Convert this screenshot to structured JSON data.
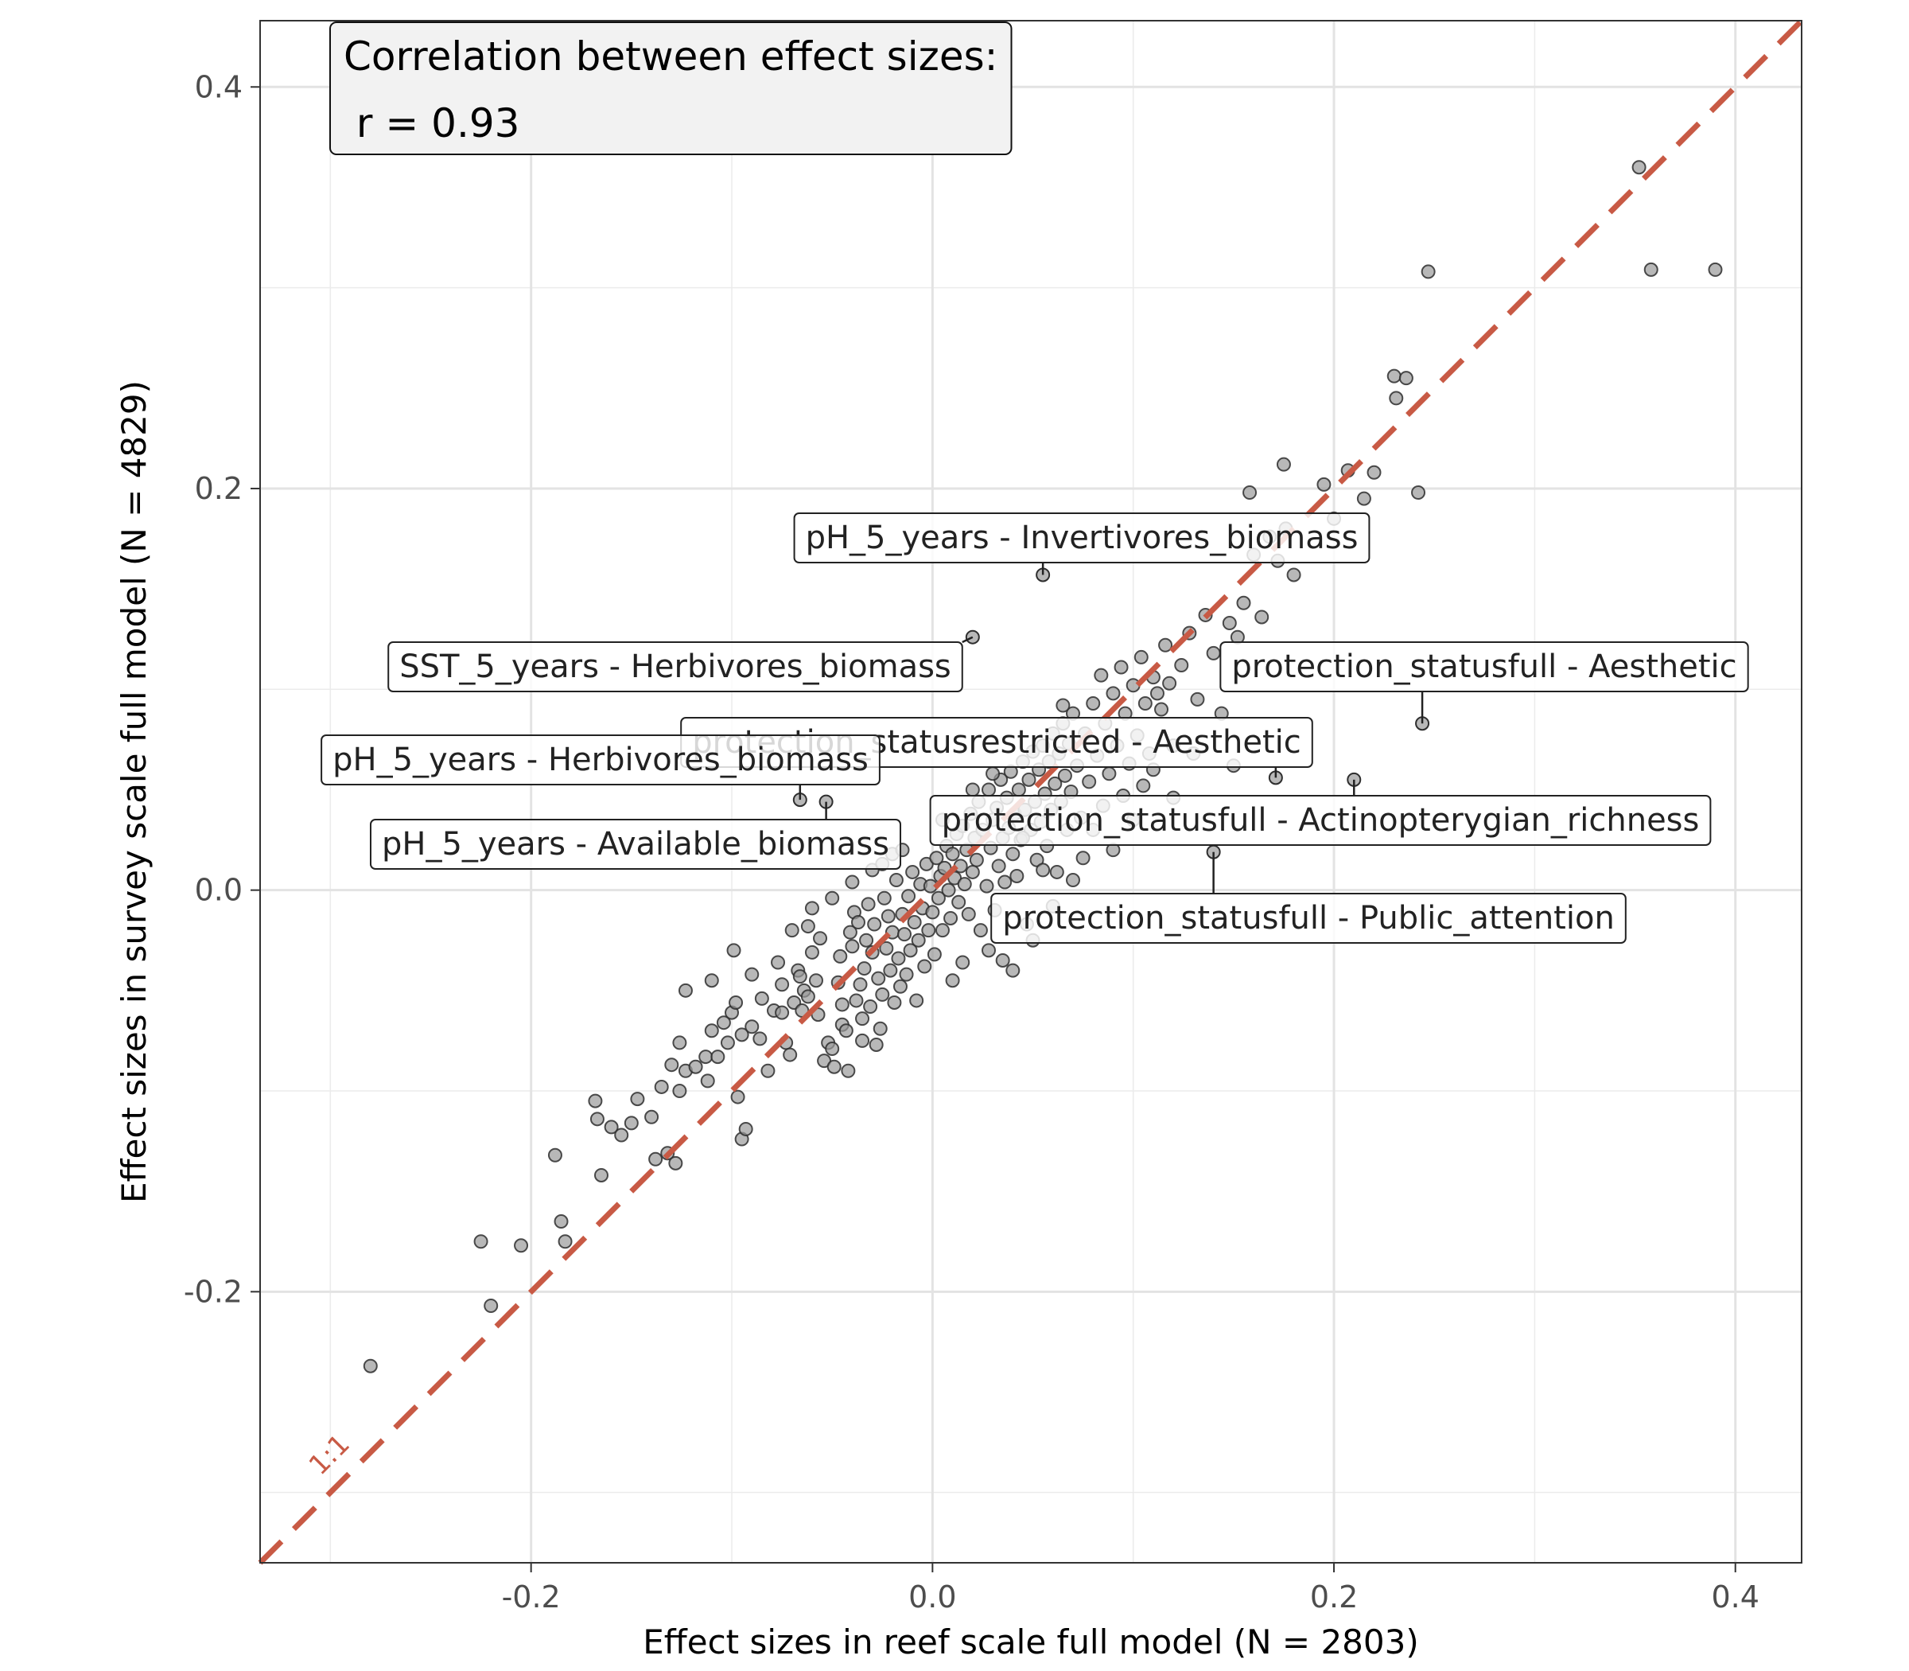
{
  "chart_data": {
    "type": "scatter",
    "title": "",
    "xlabel": "Effect sizes in reef scale full model (N = 2803)",
    "ylabel": "Effect sizes in survey scale full model (N = 4829)",
    "xlim": [
      -0.335,
      0.433
    ],
    "ylim": [
      -0.335,
      0.433
    ],
    "x_ticks": [
      -0.2,
      0.0,
      0.2,
      0.4
    ],
    "y_ticks": [
      -0.2,
      0.0,
      0.2,
      0.4
    ],
    "x_tick_labels": [
      "-0.2",
      "0.0",
      "0.2",
      "0.4"
    ],
    "y_tick_labels": [
      "-0.2",
      "0.0",
      "0.2",
      "0.4"
    ],
    "grid": true,
    "reference_line": {
      "label": "1:1",
      "slope": 1,
      "intercept": 0,
      "color": "#c85a45",
      "style": "dashed"
    },
    "correlation_box": {
      "line1": "Correlation between effect sizes:",
      "line2": " r = 0.93"
    },
    "point_style": {
      "fill": "#9a9a9a",
      "stroke": "#2e2e2e",
      "opacity": 0.7
    },
    "labeled_points": [
      {
        "label": "pH_5_years - Invertivores_biomass",
        "x": 0.055,
        "y": 0.157
      },
      {
        "label": "SST_5_years - Herbivores_biomass",
        "x": 0.02,
        "y": 0.126
      },
      {
        "label": "protection_statusfull - Aesthetic",
        "x": 0.244,
        "y": 0.083
      },
      {
        "label": "protection_statusrestricted - Aesthetic",
        "x": 0.171,
        "y": 0.056
      },
      {
        "label": "pH_5_years - Herbivores_biomass",
        "x": -0.066,
        "y": 0.045
      },
      {
        "label": "protection_statusfull - Actinopterygian_richness",
        "x": 0.21,
        "y": 0.055
      },
      {
        "label": "pH_5_years - Available_biomass",
        "x": -0.053,
        "y": 0.044
      },
      {
        "label": "protection_statusfull - Public_attention",
        "x": 0.14,
        "y": 0.019
      }
    ],
    "points": [
      [
        -0.28,
        -0.237
      ],
      [
        -0.225,
        -0.175
      ],
      [
        -0.22,
        -0.207
      ],
      [
        -0.205,
        -0.177
      ],
      [
        -0.188,
        -0.132
      ],
      [
        -0.185,
        -0.165
      ],
      [
        -0.183,
        -0.175
      ],
      [
        -0.165,
        -0.142
      ],
      [
        -0.168,
        -0.105
      ],
      [
        -0.167,
        -0.114
      ],
      [
        -0.16,
        -0.118
      ],
      [
        -0.155,
        -0.122
      ],
      [
        -0.15,
        -0.116
      ],
      [
        -0.147,
        -0.104
      ],
      [
        -0.14,
        -0.113
      ],
      [
        -0.135,
        -0.098
      ],
      [
        -0.13,
        -0.087
      ],
      [
        -0.126,
        -0.076
      ],
      [
        -0.123,
        -0.05
      ],
      [
        -0.138,
        -0.134
      ],
      [
        -0.132,
        -0.131
      ],
      [
        -0.128,
        -0.136
      ],
      [
        -0.126,
        -0.1
      ],
      [
        -0.123,
        -0.09
      ],
      [
        -0.118,
        -0.088
      ],
      [
        -0.113,
        -0.083
      ],
      [
        -0.11,
        -0.07
      ],
      [
        -0.104,
        -0.066
      ],
      [
        -0.1,
        -0.061
      ],
      [
        -0.098,
        -0.056
      ],
      [
        -0.097,
        -0.103
      ],
      [
        -0.095,
        -0.124
      ],
      [
        -0.093,
        -0.119
      ],
      [
        -0.112,
        -0.095
      ],
      [
        -0.107,
        -0.083
      ],
      [
        -0.102,
        -0.076
      ],
      [
        -0.099,
        -0.03
      ],
      [
        -0.095,
        -0.072
      ],
      [
        -0.09,
        -0.068
      ],
      [
        -0.086,
        -0.074
      ],
      [
        -0.082,
        -0.09
      ],
      [
        -0.079,
        -0.06
      ],
      [
        -0.077,
        -0.036
      ],
      [
        -0.075,
        -0.061
      ],
      [
        -0.073,
        -0.076
      ],
      [
        -0.071,
        -0.082
      ],
      [
        -0.069,
        -0.056
      ],
      [
        -0.067,
        -0.04
      ],
      [
        -0.066,
        -0.043
      ],
      [
        -0.064,
        -0.05
      ],
      [
        -0.062,
        -0.053
      ],
      [
        -0.062,
        -0.018
      ],
      [
        -0.06,
        -0.031
      ],
      [
        -0.058,
        -0.045
      ],
      [
        -0.057,
        -0.062
      ],
      [
        -0.056,
        -0.024
      ],
      [
        -0.054,
        -0.085
      ],
      [
        -0.052,
        -0.076
      ],
      [
        -0.05,
        -0.079
      ],
      [
        -0.049,
        -0.088
      ],
      [
        -0.047,
        -0.046
      ],
      [
        -0.046,
        -0.033
      ],
      [
        -0.045,
        -0.067
      ],
      [
        -0.043,
        -0.07
      ],
      [
        -0.042,
        -0.09
      ],
      [
        -0.041,
        -0.021
      ],
      [
        -0.04,
        -0.028
      ],
      [
        -0.039,
        -0.011
      ],
      [
        -0.038,
        -0.055
      ],
      [
        -0.037,
        -0.016
      ],
      [
        -0.036,
        -0.047
      ],
      [
        -0.035,
        -0.064
      ],
      [
        -0.034,
        -0.039
      ],
      [
        -0.033,
        -0.025
      ],
      [
        -0.032,
        -0.007
      ],
      [
        -0.031,
        -0.058
      ],
      [
        -0.03,
        -0.031
      ],
      [
        -0.029,
        -0.017
      ],
      [
        -0.028,
        -0.077
      ],
      [
        -0.027,
        -0.044
      ],
      [
        -0.026,
        -0.069
      ],
      [
        -0.025,
        -0.052
      ],
      [
        -0.024,
        -0.004
      ],
      [
        -0.023,
        -0.029
      ],
      [
        -0.022,
        -0.013
      ],
      [
        -0.021,
        -0.04
      ],
      [
        -0.02,
        -0.021
      ],
      [
        -0.019,
        -0.056
      ],
      [
        -0.018,
        0.005
      ],
      [
        -0.017,
        -0.034
      ],
      [
        -0.016,
        -0.048
      ],
      [
        -0.015,
        -0.012
      ],
      [
        -0.014,
        -0.022
      ],
      [
        -0.013,
        -0.042
      ],
      [
        -0.012,
        -0.003
      ],
      [
        -0.011,
        -0.03
      ],
      [
        -0.01,
        0.009
      ],
      [
        -0.009,
        -0.016
      ],
      [
        -0.008,
        -0.055
      ],
      [
        -0.007,
        -0.025
      ],
      [
        -0.006,
        0.003
      ],
      [
        -0.005,
        -0.009
      ],
      [
        -0.004,
        -0.038
      ],
      [
        -0.003,
        0.013
      ],
      [
        -0.002,
        -0.02
      ],
      [
        -0.001,
        0.002
      ],
      [
        0.0,
        -0.011
      ],
      [
        0.001,
        -0.032
      ],
      [
        0.002,
        0.016
      ],
      [
        0.003,
        -0.004
      ],
      [
        0.004,
        0.007
      ],
      [
        0.005,
        -0.02
      ],
      [
        0.006,
        0.011
      ],
      [
        0.007,
        0.022
      ],
      [
        0.008,
        0.0
      ],
      [
        0.009,
        -0.014
      ],
      [
        0.01,
        0.018
      ],
      [
        0.011,
        0.006
      ],
      [
        0.012,
        0.028
      ],
      [
        0.013,
        -0.006
      ],
      [
        0.014,
        0.012
      ],
      [
        0.015,
        0.032
      ],
      [
        0.016,
        0.003
      ],
      [
        0.017,
        0.02
      ],
      [
        0.018,
        -0.012
      ],
      [
        0.019,
        0.038
      ],
      [
        0.02,
        0.009
      ],
      [
        0.021,
        0.026
      ],
      [
        0.022,
        0.015
      ],
      [
        0.023,
        0.044
      ],
      [
        0.024,
        -0.02
      ],
      [
        0.025,
        0.03
      ],
      [
        0.027,
        0.002
      ],
      [
        0.028,
        0.05
      ],
      [
        0.029,
        0.021
      ],
      [
        0.03,
        0.035
      ],
      [
        0.031,
        -0.01
      ],
      [
        0.032,
        0.041
      ],
      [
        0.033,
        0.012
      ],
      [
        0.034,
        0.055
      ],
      [
        0.035,
        0.026
      ],
      [
        0.036,
        0.004
      ],
      [
        0.037,
        0.046
      ],
      [
        0.038,
        0.031
      ],
      [
        0.039,
        0.059
      ],
      [
        0.04,
        0.018
      ],
      [
        0.041,
        0.038
      ],
      [
        0.042,
        0.007
      ],
      [
        0.043,
        0.05
      ],
      [
        0.044,
        0.025
      ],
      [
        0.045,
        0.064
      ],
      [
        0.046,
        0.04
      ],
      [
        0.047,
        -0.017
      ],
      [
        0.048,
        0.055
      ],
      [
        0.049,
        0.03
      ],
      [
        0.05,
        0.069
      ],
      [
        0.051,
        0.044
      ],
      [
        0.052,
        0.015
      ],
      [
        0.053,
        0.06
      ],
      [
        0.054,
        0.034
      ],
      [
        0.055,
        0.072
      ],
      [
        0.056,
        0.048
      ],
      [
        0.057,
        0.022
      ],
      [
        0.058,
        0.064
      ],
      [
        0.059,
        0.04
      ],
      [
        0.06,
        0.078
      ],
      [
        0.061,
        0.053
      ],
      [
        0.062,
        0.009
      ],
      [
        0.063,
        0.068
      ],
      [
        0.064,
        0.044
      ],
      [
        0.065,
        0.083
      ],
      [
        0.066,
        0.057
      ],
      [
        0.067,
        0.03
      ],
      [
        0.068,
        0.073
      ],
      [
        0.069,
        0.049
      ],
      [
        0.07,
        0.088
      ],
      [
        0.072,
        0.062
      ],
      [
        0.074,
        0.036
      ],
      [
        0.076,
        0.078
      ],
      [
        0.078,
        0.054
      ],
      [
        0.08,
        0.093
      ],
      [
        0.082,
        0.067
      ],
      [
        0.084,
        0.107
      ],
      [
        0.086,
        0.083
      ],
      [
        0.088,
        0.058
      ],
      [
        0.09,
        0.098
      ],
      [
        0.092,
        0.072
      ],
      [
        0.094,
        0.111
      ],
      [
        0.096,
        0.088
      ],
      [
        0.098,
        0.063
      ],
      [
        0.1,
        0.102
      ],
      [
        0.102,
        0.077
      ],
      [
        0.104,
        0.116
      ],
      [
        0.106,
        0.093
      ],
      [
        0.108,
        0.068
      ],
      [
        0.11,
        0.106
      ],
      [
        0.112,
        0.098
      ],
      [
        0.114,
        0.09
      ],
      [
        0.116,
        0.122
      ],
      [
        0.118,
        0.103
      ],
      [
        0.12,
        0.072
      ],
      [
        0.124,
        0.112
      ],
      [
        0.128,
        0.128
      ],
      [
        0.132,
        0.095
      ],
      [
        0.136,
        0.137
      ],
      [
        0.14,
        0.118
      ],
      [
        0.144,
        0.088
      ],
      [
        0.148,
        0.133
      ],
      [
        0.152,
        0.126
      ],
      [
        0.155,
        0.143
      ],
      [
        0.158,
        0.198
      ],
      [
        0.16,
        0.167
      ],
      [
        0.164,
        0.136
      ],
      [
        0.168,
        0.176
      ],
      [
        0.172,
        0.164
      ],
      [
        0.176,
        0.18
      ],
      [
        0.18,
        0.157
      ],
      [
        0.175,
        0.212
      ],
      [
        0.195,
        0.202
      ],
      [
        0.2,
        0.185
      ],
      [
        0.207,
        0.209
      ],
      [
        0.215,
        0.195
      ],
      [
        0.22,
        0.208
      ],
      [
        0.23,
        0.256
      ],
      [
        0.231,
        0.245
      ],
      [
        0.236,
        0.255
      ],
      [
        0.242,
        0.198
      ],
      [
        0.247,
        0.308
      ],
      [
        0.352,
        0.36
      ],
      [
        0.358,
        0.309
      ],
      [
        0.39,
        0.309
      ],
      [
        -0.11,
        -0.045
      ],
      [
        -0.085,
        -0.054
      ],
      [
        -0.07,
        -0.02
      ],
      [
        -0.06,
        -0.009
      ],
      [
        -0.05,
        -0.004
      ],
      [
        -0.04,
        0.004
      ],
      [
        -0.03,
        0.01
      ],
      [
        -0.02,
        0.018
      ],
      [
        0.028,
        -0.03
      ],
      [
        0.035,
        -0.035
      ],
      [
        0.04,
        -0.04
      ],
      [
        0.05,
        -0.025
      ],
      [
        0.06,
        -0.008
      ],
      [
        0.075,
        0.016
      ],
      [
        0.09,
        0.02
      ],
      [
        0.095,
        0.047
      ],
      [
        0.11,
        0.06
      ],
      [
        0.13,
        0.068
      ],
      [
        0.15,
        0.062
      ],
      [
        -0.09,
        -0.042
      ],
      [
        -0.045,
        -0.057
      ],
      [
        -0.035,
        -0.075
      ],
      [
        0.01,
        -0.045
      ],
      [
        0.015,
        -0.036
      ],
      [
        0.065,
        0.092
      ],
      [
        0.085,
        0.042
      ],
      [
        0.1,
        0.035
      ],
      [
        0.12,
        0.046
      ],
      [
        -0.075,
        -0.047
      ],
      [
        -0.065,
        -0.06
      ],
      [
        -0.025,
        0.013
      ],
      [
        -0.015,
        0.02
      ],
      [
        0.005,
        0.035
      ],
      [
        0.02,
        0.05
      ],
      [
        0.03,
        0.058
      ],
      [
        0.045,
        0.026
      ],
      [
        0.055,
        0.01
      ],
      [
        0.07,
        0.005
      ],
      [
        0.08,
        0.03
      ],
      [
        0.105,
        0.052
      ]
    ]
  }
}
